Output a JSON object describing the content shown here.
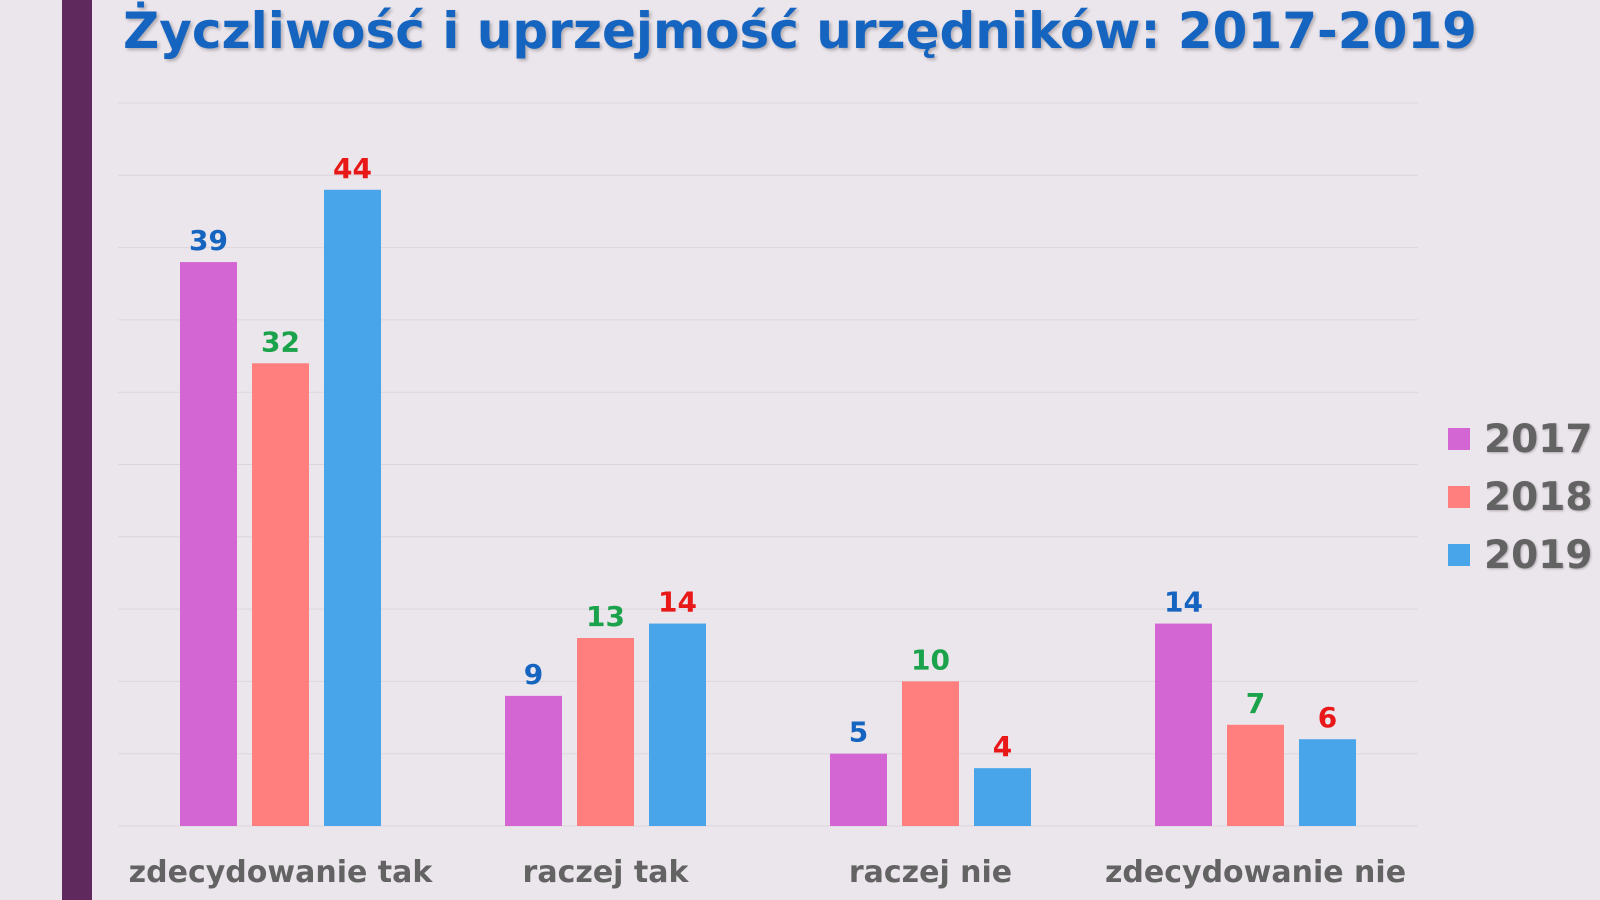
{
  "colors": {
    "background": "#ebe5ec",
    "side_bar": "#60295e",
    "title": "#1565c0",
    "grid": "#dcd5dd",
    "category_label": "#636363"
  },
  "chart_data": {
    "type": "bar",
    "title": "Życzliwość i uprzejmość urzędników: 2017-2019",
    "xlabel": "",
    "ylabel": "",
    "ylim": [
      0,
      50
    ],
    "grid": true,
    "legend_position": "right",
    "categories": [
      "zdecydowanie tak",
      "raczej tak",
      "raczej nie",
      "zdecydowanie nie"
    ],
    "series": [
      {
        "name": "2017",
        "color": "#d466d4",
        "label_color": "#1565c0",
        "values": [
          39,
          9,
          5,
          14
        ]
      },
      {
        "name": "2018",
        "color": "#ff7f7f",
        "label_color": "#1aa34a",
        "values": [
          32,
          13,
          10,
          7
        ]
      },
      {
        "name": "2019",
        "color": "#48a5ea",
        "label_color": "#e81818",
        "values": [
          44,
          14,
          4,
          6
        ]
      }
    ]
  }
}
